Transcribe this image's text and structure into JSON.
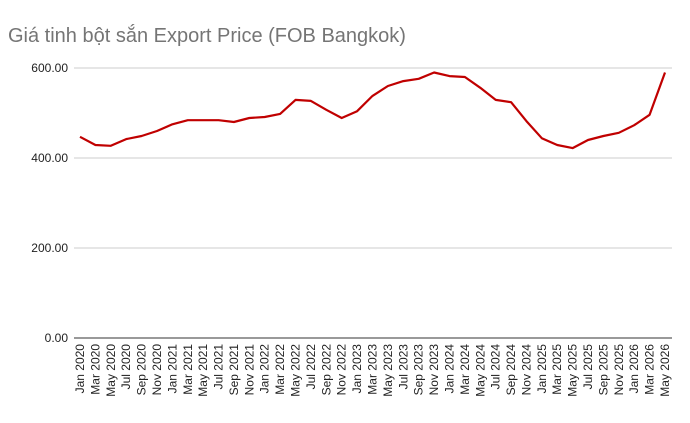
{
  "chart_data": {
    "type": "line",
    "title": "Giá tinh bột sắn Export Price (FOB Bangkok)",
    "categories": [
      "Jan 2020",
      "Mar 2020",
      "May 2020",
      "Jul 2020",
      "Sep 2020",
      "Nov 2020",
      "Jan 2021",
      "Mar 2021",
      "May 2021",
      "Jul 2021",
      "Sep 2021",
      "Nov 2021",
      "Jan 2022",
      "Mar 2022",
      "May 2022",
      "Jul 2022",
      "Sep 2022",
      "Nov 2022",
      "Jan 2023",
      "Mar 2023",
      "May 2023",
      "Jul 2023",
      "Sep 2023",
      "Nov 2023",
      "Jan 2024",
      "Mar 2024",
      "May 2024",
      "Jul 2024",
      "Sep 2024",
      "Nov 2024",
      "Jan 2025",
      "Mar 2025",
      "May 2025",
      "Jul 2025",
      "Sep 2025",
      "Nov 2025",
      "Jan 2026",
      "Mar 2026",
      "May 2026"
    ],
    "series": [
      {
        "name": "Export Price",
        "color": "#c00000",
        "values": [
          447,
          429,
          427,
          442,
          449,
          460,
          475,
          484,
          484,
          484,
          480,
          489,
          491,
          498,
          529,
          527,
          507,
          489,
          504,
          538,
          560,
          571,
          576,
          590,
          582,
          580,
          556,
          529,
          524,
          482,
          444,
          429,
          422,
          440,
          449,
          456,
          473,
          496,
          590
        ]
      }
    ],
    "ylim": [
      0,
      600
    ],
    "yticks": [
      {
        "value": 0,
        "label": "0.00"
      },
      {
        "value": 200,
        "label": "200.00"
      },
      {
        "value": 400,
        "label": "400.00"
      },
      {
        "value": 600,
        "label": "600.00"
      }
    ],
    "grid": true
  }
}
